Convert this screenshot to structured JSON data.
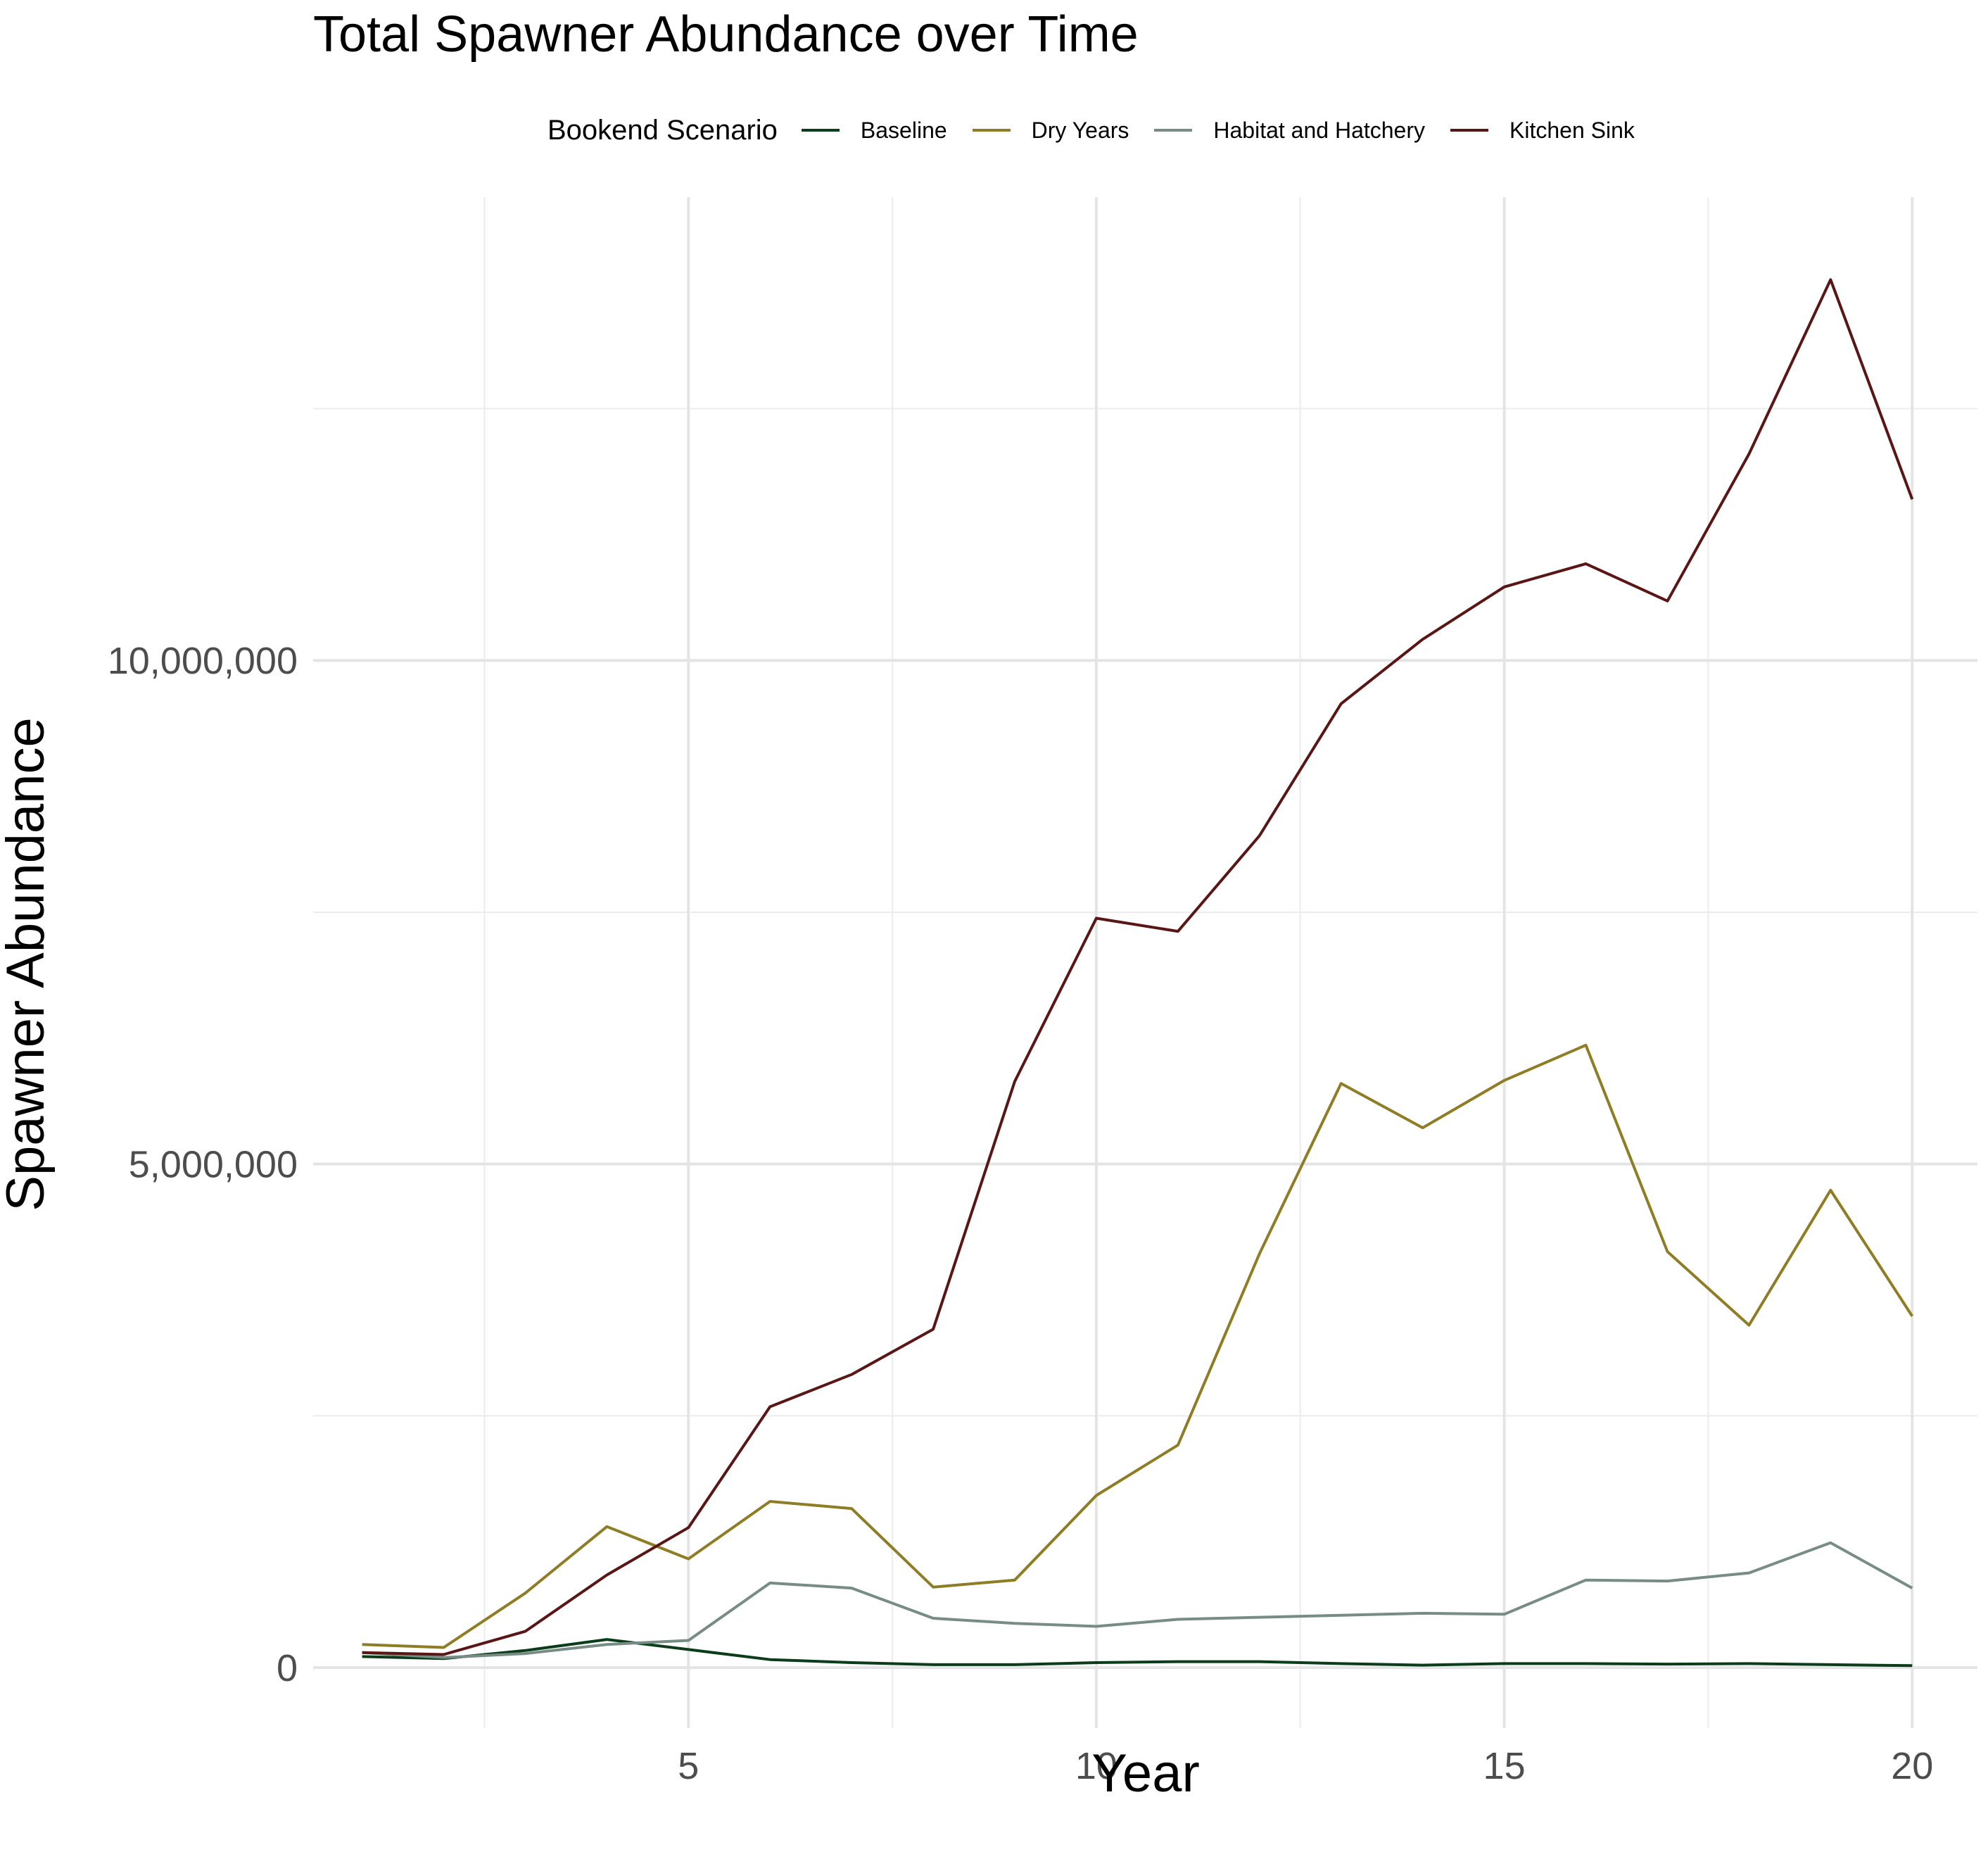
{
  "chart_data": {
    "type": "line",
    "title": "Total Spawner Abundance over Time",
    "xlabel": "Year",
    "ylabel": "Spawner Abundance",
    "legend_title": "Bookend Scenario",
    "legend_position": "top",
    "grid": true,
    "xlim": [
      0.4,
      20.8
    ],
    "ylim": [
      -600000,
      14600000
    ],
    "x_ticks": [
      5,
      10,
      15,
      20
    ],
    "x_tick_labels": [
      "5",
      "10",
      "15",
      "20"
    ],
    "y_ticks": [
      0,
      5000000,
      10000000
    ],
    "y_tick_labels": [
      "0",
      "5,000,000",
      "10,000,000"
    ],
    "x": [
      1,
      2,
      3,
      4,
      5,
      6,
      7,
      8,
      9,
      10,
      11,
      12,
      13,
      14,
      15,
      16,
      17,
      18,
      19,
      20
    ],
    "series": [
      {
        "name": "Baseline",
        "color": "#0b3d1a",
        "values": [
          110000,
          90000,
          170000,
          280000,
          180000,
          80000,
          50000,
          30000,
          30000,
          50000,
          60000,
          60000,
          40000,
          25000,
          40000,
          40000,
          35000,
          40000,
          30000,
          20000
        ]
      },
      {
        "name": "Dry Years",
        "color": "#8e7d24",
        "values": [
          230000,
          200000,
          740000,
          1400000,
          1080000,
          1650000,
          1580000,
          800000,
          870000,
          1710000,
          2210000,
          4110000,
          5800000,
          5360000,
          5830000,
          6180000,
          4130000,
          3400000,
          4740000,
          3490000
        ]
      },
      {
        "name": "Habitat and Hatchery",
        "color": "#778c85",
        "values": [
          150000,
          100000,
          140000,
          230000,
          270000,
          840000,
          790000,
          490000,
          440000,
          410000,
          480000,
          500000,
          520000,
          540000,
          530000,
          870000,
          860000,
          940000,
          1240000,
          790000
        ]
      },
      {
        "name": "Kitchen Sink",
        "color": "#5a1515",
        "values": [
          150000,
          130000,
          360000,
          920000,
          1390000,
          2590000,
          2910000,
          3360000,
          5820000,
          7440000,
          7310000,
          8260000,
          9570000,
          10210000,
          10730000,
          10960000,
          10590000,
          12050000,
          13780000,
          11600000
        ]
      }
    ]
  }
}
